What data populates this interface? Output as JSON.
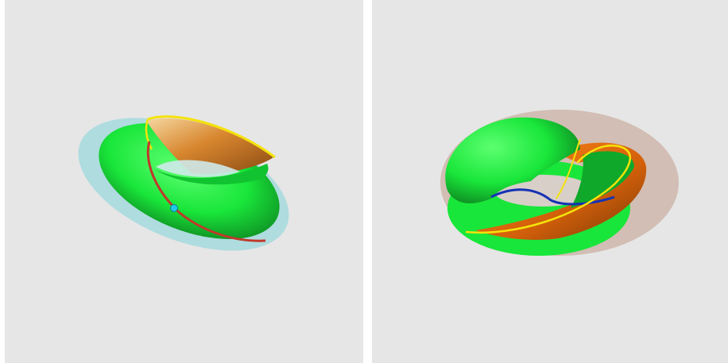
{
  "colors": {
    "background": "#e6e6e6",
    "divider": "#ffffff",
    "surface_green": "#19e63a",
    "surface_orange": "#e8770f",
    "halo_cyan": "#7fd3d8",
    "halo_brown": "#c8a99a",
    "curve_red": "#c0392b",
    "curve_yellow": "#f4e20b",
    "curve_blue": "#1432b4",
    "point_cyan": "#20c8e8"
  },
  "panels": [
    {
      "figure": "surface-with-geodesic",
      "surface": "twisted-torus-band"
    },
    {
      "figure": "surface-with-geodesic",
      "surface": "twisted-torus-band"
    }
  ]
}
